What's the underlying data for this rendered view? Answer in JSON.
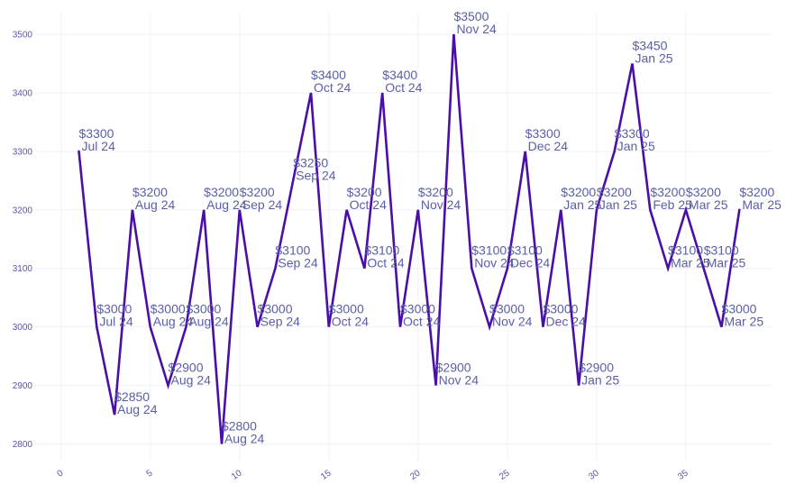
{
  "chart_data": {
    "type": "line",
    "title": "",
    "xlabel": "",
    "ylabel": "",
    "xlim": [
      -1.5,
      39.8
    ],
    "ylim": [
      2770,
      3537
    ],
    "xticks": [
      0,
      5,
      10,
      15,
      20,
      25,
      30,
      35
    ],
    "xtick_labels": [
      "0",
      "5",
      "10",
      "15",
      "20",
      "25",
      "30",
      "35"
    ],
    "yticks": [
      2800,
      2900,
      3000,
      3100,
      3200,
      3300,
      3400,
      3500
    ],
    "ytick_labels": [
      "2800",
      "2900",
      "3000",
      "3100",
      "3200",
      "3300",
      "3400",
      "3500"
    ],
    "grid": true,
    "line_color": "#4a0fa8",
    "label_color": "#5b5fa6",
    "tick_color": "#5a55a8",
    "x": [
      1,
      2,
      3,
      4,
      5,
      6,
      7,
      8,
      9,
      10,
      11,
      12,
      13,
      14,
      15,
      16,
      17,
      18,
      19,
      20,
      21,
      22,
      23,
      24,
      25,
      26,
      27,
      28,
      29,
      30,
      31,
      32,
      33,
      34,
      35,
      36,
      37,
      38
    ],
    "values": [
      3300,
      3000,
      2850,
      3200,
      3000,
      2900,
      3000,
      3200,
      2800,
      3200,
      3000,
      3100,
      3250,
      3400,
      3000,
      3200,
      3100,
      3400,
      3000,
      3200,
      2900,
      3500,
      3100,
      3000,
      3100,
      3300,
      3000,
      3200,
      2900,
      3200,
      3300,
      3450,
      3200,
      3100,
      3200,
      3100,
      3000,
      3200
    ],
    "price_labels": [
      "$3300",
      "$3000",
      "$2850",
      "$3200",
      "$3000",
      "$2900",
      "$3000",
      "$3200",
      "$2800",
      "$3200",
      "$3000",
      "$3100",
      "$3250",
      "$3400",
      "$3000",
      "$3200",
      "$3100",
      "$3400",
      "$3000",
      "$3200",
      "$2900",
      "$3500",
      "$3100",
      "$3000",
      "$3100",
      "$3300",
      "$3000",
      "$3200",
      "$2900",
      "$3200",
      "$3300",
      "$3450",
      "$3200",
      "$3100",
      "$3200",
      "$3100",
      "$3000",
      "$3200"
    ],
    "month_labels": [
      "Jul 24",
      "Jul 24",
      "Aug 24",
      "Aug 24",
      "Aug 24",
      "Aug 24",
      "Aug 24",
      "Aug 24",
      "Aug 24",
      "Sep 24",
      "Sep 24",
      "Sep 24",
      "Sep 24",
      "Oct 24",
      "Oct 24",
      "Oct 24",
      "Oct 24",
      "Oct 24",
      "Oct 24",
      "Nov 24",
      "Nov 24",
      "Nov 24",
      "Nov 24",
      "Nov 24",
      "Dec 24",
      "Dec 24",
      "Dec 24",
      "Jan 25",
      "Jan 25",
      "Jan 25",
      "Jan 25",
      "Jan 25",
      "Feb 25",
      "Mar 25",
      "Mar 25",
      "Mar 25",
      "Mar 25",
      "Mar 25"
    ]
  }
}
